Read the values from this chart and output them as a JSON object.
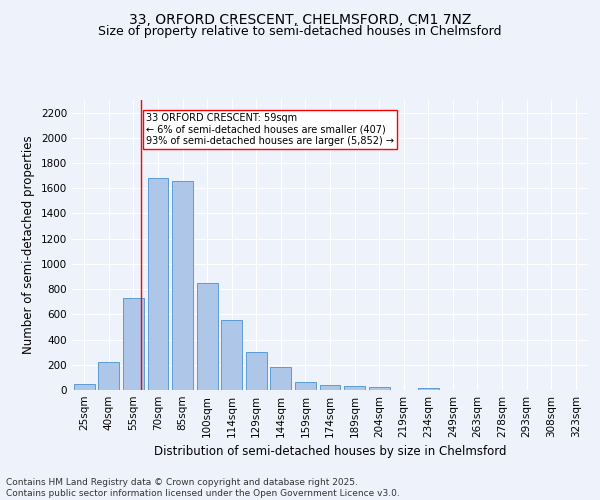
{
  "title_line1": "33, ORFORD CRESCENT, CHELMSFORD, CM1 7NZ",
  "title_line2": "Size of property relative to semi-detached houses in Chelmsford",
  "xlabel": "Distribution of semi-detached houses by size in Chelmsford",
  "ylabel": "Number of semi-detached properties",
  "categories": [
    "25sqm",
    "40sqm",
    "55sqm",
    "70sqm",
    "85sqm",
    "100sqm",
    "114sqm",
    "129sqm",
    "144sqm",
    "159sqm",
    "174sqm",
    "189sqm",
    "204sqm",
    "219sqm",
    "234sqm",
    "249sqm",
    "263sqm",
    "278sqm",
    "293sqm",
    "308sqm",
    "323sqm"
  ],
  "values": [
    45,
    225,
    730,
    1680,
    1660,
    850,
    555,
    300,
    180,
    65,
    40,
    30,
    20,
    0,
    15,
    0,
    0,
    0,
    0,
    0,
    0
  ],
  "bar_color": "#aec6e8",
  "bar_edge_color": "#5b9bd5",
  "vline_color": "red",
  "annotation_text": "33 ORFORD CRESCENT: 59sqm\n← 6% of semi-detached houses are smaller (407)\n93% of semi-detached houses are larger (5,852) →",
  "annotation_box_color": "white",
  "annotation_box_edge_color": "red",
  "ylim": [
    0,
    2300
  ],
  "yticks": [
    0,
    200,
    400,
    600,
    800,
    1000,
    1200,
    1400,
    1600,
    1800,
    2000,
    2200
  ],
  "bg_color": "#eef3fb",
  "grid_color": "white",
  "footer": "Contains HM Land Registry data © Crown copyright and database right 2025.\nContains public sector information licensed under the Open Government Licence v3.0.",
  "title_fontsize": 10,
  "subtitle_fontsize": 9,
  "axis_label_fontsize": 8.5,
  "tick_fontsize": 7.5,
  "footer_fontsize": 6.5
}
